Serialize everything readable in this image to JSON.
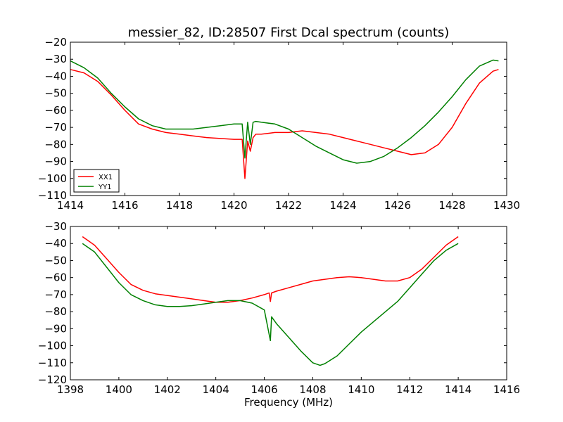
{
  "chart_data": [
    {
      "type": "line",
      "title": "messier_82, ID:28507 First Dcal spectrum (counts)",
      "xlabel": "",
      "ylabel": "",
      "xlim": [
        1414,
        1430
      ],
      "ylim": [
        -110,
        -20
      ],
      "xticks": [
        1414,
        1416,
        1418,
        1420,
        1422,
        1424,
        1426,
        1428,
        1430
      ],
      "yticks": [
        -110,
        -100,
        -90,
        -80,
        -70,
        -60,
        -50,
        -40,
        -30,
        -20
      ],
      "legend": "lower-left",
      "series": [
        {
          "name": "XX1",
          "color": "#ff0000",
          "x": [
            1414.0,
            1414.5,
            1415.0,
            1415.5,
            1416.0,
            1416.5,
            1417.0,
            1417.5,
            1418.0,
            1418.5,
            1419.0,
            1419.5,
            1420.0,
            1420.3,
            1420.4,
            1420.5,
            1420.6,
            1420.7,
            1420.8,
            1421.0,
            1421.5,
            1422.0,
            1422.5,
            1423.0,
            1423.5,
            1424.0,
            1424.5,
            1425.0,
            1425.5,
            1426.0,
            1426.5,
            1427.0,
            1427.5,
            1428.0,
            1428.5,
            1429.0,
            1429.5,
            1429.7
          ],
          "values": [
            -36,
            -38,
            -43,
            -51,
            -60,
            -68,
            -71,
            -73,
            -74,
            -75,
            -76,
            -76.5,
            -77,
            -77,
            -100,
            -78,
            -84,
            -76,
            -74,
            -74,
            -73,
            -73,
            -72,
            -73,
            -74,
            -76,
            -78,
            -80,
            -82,
            -84,
            -86,
            -85,
            -80,
            -70,
            -56,
            -44,
            -37,
            -36
          ]
        },
        {
          "name": "YY1",
          "color": "#008000",
          "x": [
            1414.0,
            1414.5,
            1415.0,
            1415.5,
            1416.0,
            1416.5,
            1417.0,
            1417.5,
            1418.0,
            1418.5,
            1419.0,
            1419.5,
            1420.0,
            1420.3,
            1420.4,
            1420.5,
            1420.6,
            1420.7,
            1420.8,
            1421.0,
            1421.5,
            1422.0,
            1422.5,
            1423.0,
            1423.5,
            1424.0,
            1424.5,
            1425.0,
            1425.5,
            1426.0,
            1426.5,
            1427.0,
            1427.5,
            1428.0,
            1428.5,
            1429.0,
            1429.5,
            1429.7
          ],
          "values": [
            -31,
            -35,
            -41,
            -50,
            -58,
            -65,
            -69,
            -71,
            -71,
            -71,
            -70,
            -69,
            -68,
            -68,
            -88,
            -67,
            -80,
            -67,
            -66.5,
            -67,
            -68,
            -71,
            -76,
            -81,
            -85,
            -89,
            -91,
            -90,
            -87,
            -82,
            -76,
            -69,
            -61,
            -52,
            -42,
            -34,
            -30.5,
            -31
          ]
        }
      ]
    },
    {
      "type": "line",
      "title": "",
      "xlabel": "Frequency (MHz)",
      "ylabel": "",
      "xlim": [
        1398,
        1416
      ],
      "ylim": [
        -120,
        -30
      ],
      "xticks": [
        1398,
        1400,
        1402,
        1404,
        1406,
        1408,
        1410,
        1412,
        1414,
        1416
      ],
      "yticks": [
        -120,
        -110,
        -100,
        -90,
        -80,
        -70,
        -60,
        -50,
        -40,
        -30
      ],
      "series": [
        {
          "color": "#ff0000",
          "x": [
            1398.5,
            1399.0,
            1399.5,
            1400.0,
            1400.5,
            1401.0,
            1401.5,
            1402.0,
            1402.5,
            1403.0,
            1403.5,
            1404.0,
            1404.5,
            1405.0,
            1405.5,
            1406.0,
            1406.2,
            1406.25,
            1406.3,
            1406.5,
            1407.0,
            1407.5,
            1408.0,
            1408.5,
            1409.0,
            1409.5,
            1410.0,
            1410.5,
            1411.0,
            1411.5,
            1412.0,
            1412.5,
            1413.0,
            1413.5,
            1414.0
          ],
          "values": [
            -36,
            -41,
            -49,
            -57,
            -64,
            -67.5,
            -69.5,
            -70.5,
            -71.5,
            -72.5,
            -73.5,
            -74.5,
            -74.5,
            -73.5,
            -72,
            -70,
            -69,
            -74,
            -69,
            -68,
            -66,
            -64,
            -62,
            -61,
            -60,
            -59.5,
            -60,
            -61,
            -62,
            -62,
            -60,
            -55,
            -48,
            -41,
            -36
          ]
        },
        {
          "color": "#008000",
          "x": [
            1398.5,
            1399.0,
            1399.5,
            1400.0,
            1400.5,
            1401.0,
            1401.5,
            1402.0,
            1402.5,
            1403.0,
            1403.5,
            1404.0,
            1404.5,
            1405.0,
            1405.5,
            1406.0,
            1406.25,
            1406.3,
            1406.5,
            1407.0,
            1407.5,
            1408.0,
            1408.3,
            1408.5,
            1409.0,
            1409.5,
            1410.0,
            1410.5,
            1411.0,
            1411.5,
            1412.0,
            1412.5,
            1413.0,
            1413.5,
            1414.0
          ],
          "values": [
            -40,
            -45,
            -54,
            -63,
            -70,
            -73.5,
            -76,
            -77,
            -77,
            -76.5,
            -75.5,
            -74.5,
            -73.5,
            -73.5,
            -75,
            -79,
            -97,
            -83,
            -87,
            -95,
            -103,
            -110,
            -111.5,
            -110.5,
            -106,
            -99,
            -92,
            -86,
            -80,
            -74,
            -66,
            -58,
            -50,
            -44,
            -40
          ]
        }
      ]
    }
  ]
}
